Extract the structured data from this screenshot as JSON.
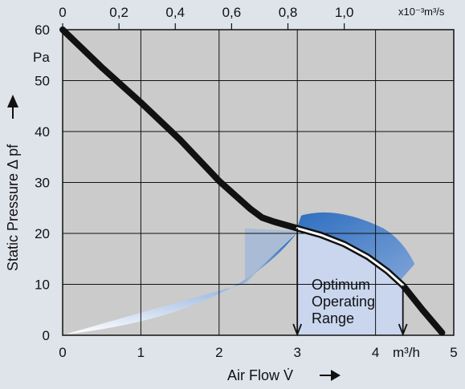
{
  "chart_data": {
    "type": "line",
    "title": "",
    "xlabel": "Air Flow V̇",
    "ylabel": "Static Pressure Δ pf",
    "x_unit": "m³/h",
    "y_unit": "Pa",
    "xlim": [
      0,
      5
    ],
    "ylim": [
      0,
      60
    ],
    "x_ticks": [
      "0",
      "1",
      "2",
      "3",
      "4",
      "5"
    ],
    "y_ticks": [
      "0",
      "10",
      "20",
      "30",
      "40",
      "50",
      "60"
    ],
    "top_axis": {
      "label": "x10⁻³m³/s",
      "ticks": [
        "0",
        "0,2",
        "0,4",
        "0,6",
        "0,8",
        "1,0"
      ],
      "tick_values_m3h": [
        0,
        0.72,
        1.44,
        2.16,
        2.88,
        3.6
      ]
    },
    "grid": true,
    "series": [
      {
        "x": [
          0,
          0.5,
          1.0,
          1.5,
          2.0,
          2.4,
          2.55,
          2.7,
          3.0,
          3.3,
          3.6,
          3.9,
          4.15,
          4.35,
          4.6,
          4.85
        ],
        "y": [
          60,
          52.6,
          45.7,
          38.4,
          30.3,
          24.8,
          23.1,
          22.3,
          21.0,
          19.7,
          17.9,
          15.4,
          12.6,
          9.8,
          5.0,
          0.5
        ],
        "color": "#111111"
      }
    ],
    "optimum_range": {
      "label_lines": [
        "Optimum",
        "Operating",
        "Range"
      ],
      "x_start": 3.0,
      "x_end": 4.35,
      "y_start": 21.0,
      "y_end": 9.8
    },
    "colors": {
      "plot_background": "#cbcbcb",
      "grid": "#111111",
      "fill_blue": "#3d7ac4",
      "fill_light": "#c9d6ee"
    }
  }
}
